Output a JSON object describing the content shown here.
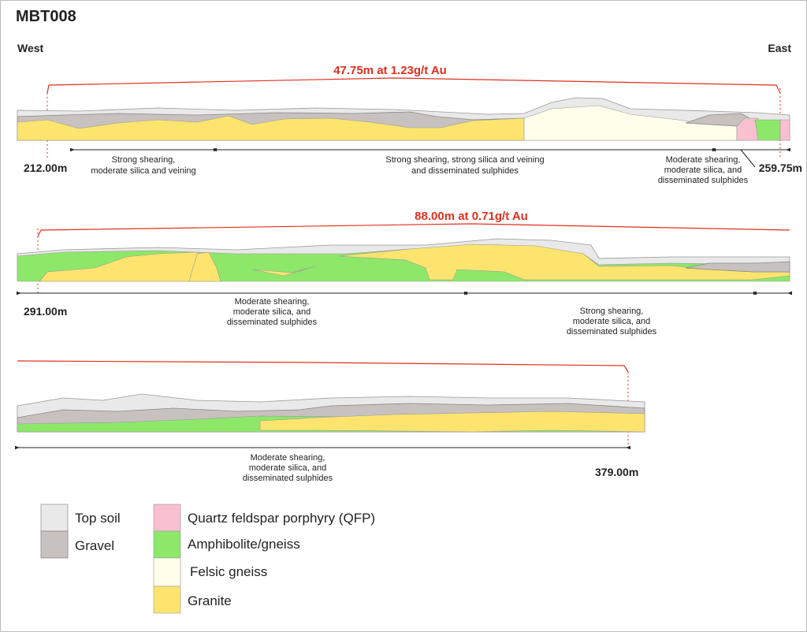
{
  "title": "MBT008",
  "west": "West",
  "east": "East",
  "sections": [
    {
      "intercept": "47.75m at 1.23g/t Au",
      "start": "212.00m",
      "end": "259.75m",
      "annotations": [
        {
          "lines": [
            "Strong shearing,",
            "moderate silica and veining"
          ]
        },
        {
          "lines": [
            "Strong shearing, strong silica and veining",
            "and disseminated sulphides"
          ]
        },
        {
          "lines": [
            "Moderate shearing,",
            "moderate silica, and",
            "disseminated sulphides"
          ]
        }
      ]
    },
    {
      "intercept": "88.00m at 0.71g/t Au",
      "start": "291.00m",
      "annotations": [
        {
          "lines": [
            "Moderate shearing,",
            "moderate silica, and",
            "disseminated sulphides"
          ]
        },
        {
          "lines": [
            "Strong shearing,",
            "moderate silica, and",
            "disseminated sulphides"
          ]
        }
      ]
    },
    {
      "end": "379.00m",
      "annotations": [
        {
          "lines": [
            "Moderate shearing,",
            "moderate silica, and",
            "disseminated sulphides"
          ]
        }
      ]
    }
  ],
  "legend": [
    "Top soil",
    "Gravel",
    "Quartz feldspar porphyry (QFP)",
    "Amphibolite/gneiss",
    "Felsic gneiss",
    "Granite"
  ]
}
